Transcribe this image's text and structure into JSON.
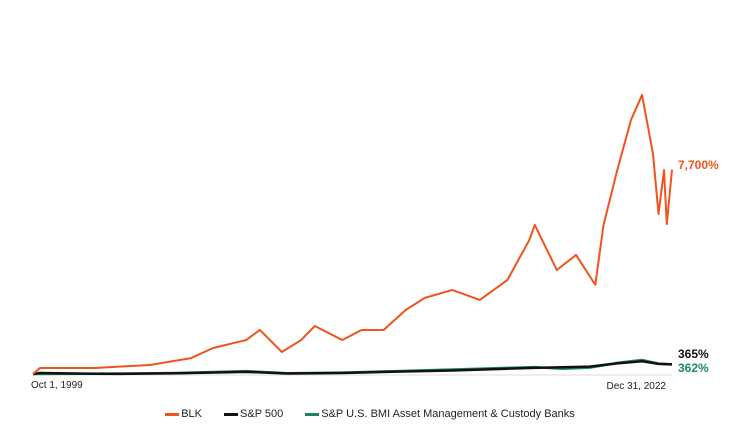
{
  "chart_data": {
    "type": "line",
    "title": "",
    "xlabel": "",
    "ylabel": "",
    "x_tick_labels": [
      "Oct 1, 1999",
      "Dec 31, 2022"
    ],
    "xlim": [
      1999.75,
      2022.99
    ],
    "ylim": [
      0,
      11000
    ],
    "grid": false,
    "legend_placement": "bottom",
    "series": [
      {
        "name": "BLK",
        "color": "#f0531e",
        "end_label": "7,700%",
        "x": [
          1999.75,
          2000,
          2002,
          2004,
          2005.5,
          2006.3,
          2007.5,
          2008,
          2008.8,
          2009.5,
          2010,
          2011,
          2011.7,
          2012.5,
          2013.3,
          2014,
          2015,
          2016,
          2017,
          2017.8,
          2018,
          2018.8,
          2019.5,
          2020.2,
          2020.5,
          2021,
          2021.5,
          2021.9,
          2022.3,
          2022.5,
          2022.7,
          2022.8,
          2022.99
        ],
        "values": [
          0,
          226,
          226,
          340,
          600,
          980,
          1280,
          1660,
          830,
          1280,
          1810,
          1280,
          1660,
          1660,
          2410,
          2870,
          3170,
          2790,
          3540,
          5050,
          5620,
          3920,
          4490,
          3360,
          5620,
          7690,
          9580,
          10520,
          8290,
          6030,
          7690,
          5650,
          7700
        ]
      },
      {
        "name": "S&P 500",
        "color": "#111111",
        "end_label": "365%",
        "x": [
          1999.75,
          2000,
          2002,
          2003,
          2005,
          2007.5,
          2009,
          2011,
          2013,
          2015,
          2017,
          2018,
          2020,
          2021,
          2021.9,
          2022.5,
          2022.99
        ],
        "values": [
          0,
          40,
          10,
          5,
          30,
          80,
          20,
          40,
          90,
          130,
          200,
          230,
          280,
          400,
          480,
          380,
          365
        ]
      },
      {
        "name": "S&P U.S. BMI Asset Management & Custody Banks",
        "color": "#1a8a5e",
        "end_label": "362%",
        "x": [
          1999.75,
          2003.5,
          2005,
          2007.5,
          2009,
          2011,
          2013,
          2015,
          2017,
          2018,
          2019,
          2020,
          2021,
          2021.9,
          2022.5,
          2022.99
        ],
        "values": [
          0,
          20,
          40,
          110,
          30,
          50,
          110,
          170,
          230,
          260,
          200,
          240,
          420,
          530,
          390,
          362
        ]
      }
    ]
  }
}
